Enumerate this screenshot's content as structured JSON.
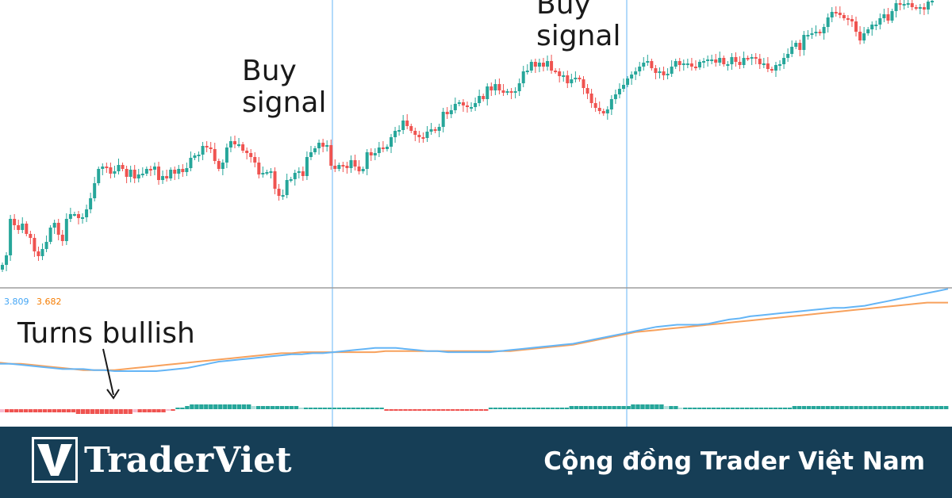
{
  "chart_data": {
    "type": "candlestick",
    "colors": {
      "up": "#26a69a",
      "down": "#ef5350",
      "fast_line": "#64b5f6",
      "slow_line": "#f7a15c",
      "hist_strong_up": "#26a69a",
      "hist_weak_up": "#b2dfdb",
      "hist_strong_down": "#ef5350",
      "hist_weak_down": "#f8bbd0",
      "signal_line": "#64b5f6"
    },
    "price_series": {
      "close": [
        334,
        322,
        276,
        284,
        290,
        282,
        295,
        300,
        317,
        323,
        314,
        305,
        287,
        281,
        296,
        304,
        276,
        270,
        270,
        275,
        274,
        264,
        250,
        231,
        213,
        210,
        211,
        219,
        216,
        208,
        213,
        223,
        214,
        225,
        220,
        219,
        213,
        214,
        210,
        227,
        222,
        225,
        214,
        219,
        213,
        217,
        212,
        199,
        196,
        195,
        184,
        186,
        188,
        203,
        213,
        205,
        186,
        178,
        182,
        182,
        190,
        193,
        198,
        205,
        220,
        218,
        217,
        216,
        238,
        247,
        246,
        227,
        226,
        218,
        216,
        222,
        198,
        192,
        187,
        180,
        185,
        183,
        209,
        213,
        208,
        209,
        212,
        202,
        210,
        216,
        213,
        192,
        196,
        193,
        186,
        188,
        185,
        173,
        165,
        164,
        152,
        159,
        165,
        170,
        173,
        174,
        166,
        163,
        165,
        160,
        141,
        144,
        139,
        131,
        129,
        133,
        135,
        135,
        130,
        121,
        125,
        109,
        114,
        106,
        114,
        117,
        115,
        117,
        115,
        105,
        90,
        89,
        78,
        84,
        79,
        84,
        77,
        89,
        90,
        96,
        95,
        105,
        100,
        98,
        100,
        111,
        118,
        130,
        136,
        140,
        143,
        138,
        125,
        119,
        112,
        107,
        99,
        94,
        90,
        84,
        79,
        77,
        86,
        92,
        90,
        95,
        93,
        84,
        77,
        82,
        80,
        80,
        84,
        85,
        78,
        77,
        75,
        75,
        79,
        73,
        81,
        81,
        72,
        78,
        82,
        73,
        74,
        72,
        74,
        81,
        80,
        87,
        89,
        82,
        81,
        73,
        68,
        59,
        54,
        63,
        44,
        44,
        42,
        40,
        42,
        34,
        22,
        15,
        16,
        19,
        23,
        24,
        27,
        40,
        51,
        42,
        37,
        31,
        31,
        23,
        18,
        26,
        14,
        4,
        6,
        5,
        4,
        9,
        10,
        9,
        12,
        2,
        1
      ]
    },
    "fast_line": [
      3.1,
      3.1,
      3.09,
      3.08,
      3.07,
      3.06,
      3.05,
      3.05,
      3.05,
      3.04,
      3.04,
      3.03,
      3.03,
      3.03,
      3.03,
      3.03,
      3.04,
      3.05,
      3.06,
      3.08,
      3.1,
      3.12,
      3.13,
      3.14,
      3.15,
      3.16,
      3.17,
      3.18,
      3.19,
      3.19,
      3.2,
      3.2,
      3.21,
      3.22,
      3.23,
      3.24,
      3.25,
      3.25,
      3.25,
      3.24,
      3.23,
      3.22,
      3.22,
      3.21,
      3.21,
      3.21,
      3.21,
      3.21,
      3.22,
      3.23,
      3.24,
      3.25,
      3.26,
      3.27,
      3.28,
      3.29,
      3.31,
      3.33,
      3.35,
      3.37,
      3.39,
      3.41,
      3.43,
      3.45,
      3.46,
      3.47,
      3.47,
      3.47,
      3.48,
      3.5,
      3.52,
      3.53,
      3.55,
      3.56,
      3.57,
      3.58,
      3.59,
      3.6,
      3.61,
      3.62,
      3.63,
      3.63,
      3.64,
      3.65,
      3.67,
      3.69,
      3.71,
      3.73,
      3.75,
      3.77,
      3.79,
      3.81
    ],
    "slow_line": [
      3.11,
      3.1,
      3.1,
      3.09,
      3.08,
      3.07,
      3.06,
      3.05,
      3.04,
      3.04,
      3.04,
      3.04,
      3.05,
      3.06,
      3.07,
      3.08,
      3.09,
      3.1,
      3.11,
      3.12,
      3.13,
      3.14,
      3.15,
      3.16,
      3.17,
      3.18,
      3.19,
      3.2,
      3.2,
      3.21,
      3.21,
      3.21,
      3.21,
      3.21,
      3.21,
      3.21,
      3.21,
      3.22,
      3.22,
      3.22,
      3.22,
      3.22,
      3.22,
      3.22,
      3.22,
      3.22,
      3.22,
      3.22,
      3.22,
      3.22,
      3.23,
      3.24,
      3.25,
      3.26,
      3.27,
      3.28,
      3.3,
      3.32,
      3.34,
      3.36,
      3.38,
      3.4,
      3.41,
      3.42,
      3.43,
      3.44,
      3.45,
      3.46,
      3.47,
      3.48,
      3.49,
      3.5,
      3.51,
      3.52,
      3.53,
      3.54,
      3.55,
      3.56,
      3.57,
      3.58,
      3.59,
      3.6,
      3.61,
      3.62,
      3.63,
      3.64,
      3.65,
      3.66,
      3.67,
      3.68,
      3.68,
      3.68
    ],
    "histogram": [
      -0.02,
      -0.02,
      -0.02,
      -0.02,
      -0.02,
      -0.02,
      -0.02,
      -0.02,
      -0.02,
      -0.02,
      -0.02,
      -0.02,
      -0.02,
      -0.02,
      -0.02,
      -0.02,
      -0.03,
      -0.03,
      -0.03,
      -0.03,
      -0.03,
      -0.03,
      -0.03,
      -0.03,
      -0.03,
      -0.03,
      -0.03,
      -0.03,
      -0.02,
      -0.02,
      -0.02,
      -0.02,
      -0.02,
      -0.02,
      -0.02,
      -0.01,
      -0.01,
      0.01,
      0.01,
      0.02,
      0.03,
      0.03,
      0.03,
      0.03,
      0.03,
      0.03,
      0.03,
      0.03,
      0.03,
      0.03,
      0.03,
      0.03,
      0.03,
      0.02,
      0.02,
      0.02,
      0.02,
      0.02,
      0.02,
      0.02,
      0.02,
      0.02,
      0.02,
      0.01,
      0.01,
      0.01,
      0.01,
      0.01,
      0.01,
      0.01,
      0.01,
      0.01,
      0.01,
      0.01,
      0.01,
      0.01,
      0.01,
      0.01,
      0.01,
      0.01,
      0.01,
      -0.01,
      -0.01,
      -0.01,
      -0.01,
      -0.01,
      -0.01,
      -0.01,
      -0.01,
      -0.01,
      -0.01,
      -0.01,
      -0.01,
      -0.01,
      -0.01,
      -0.01,
      -0.01,
      -0.01,
      -0.01,
      -0.01,
      -0.01,
      -0.01,
      -0.01,
      0.01,
      0.01,
      0.01,
      0.01,
      0.01,
      0.01,
      0.01,
      0.01,
      0.01,
      0.01,
      0.01,
      0.01,
      0.01,
      0.01,
      0.01,
      0.01,
      0.01,
      0.02,
      0.02,
      0.02,
      0.02,
      0.02,
      0.02,
      0.02,
      0.02,
      0.02,
      0.02,
      0.02,
      0.02,
      0.02,
      0.03,
      0.03,
      0.03,
      0.03,
      0.03,
      0.03,
      0.03,
      0.02,
      0.02,
      0.02,
      0.01,
      0.01,
      0.01,
      0.01,
      0.01,
      0.01,
      0.01,
      0.01,
      0.01,
      0.01,
      0.01,
      0.01,
      0.01,
      0.01,
      0.01,
      0.01,
      0.01,
      0.01,
      0.01,
      0.01,
      0.01,
      0.01,
      0.01,
      0.01,
      0.02,
      0.02,
      0.02,
      0.02,
      0.02,
      0.02,
      0.02,
      0.02,
      0.02,
      0.02,
      0.02,
      0.02,
      0.02,
      0.02,
      0.02,
      0.02,
      0.02,
      0.02,
      0.02,
      0.02,
      0.02,
      0.02,
      0.02,
      0.02,
      0.02,
      0.02,
      0.02,
      0.02,
      0.02,
      0.02,
      0.02,
      0.02,
      0.02
    ],
    "indicator_values": {
      "fast": "3.809",
      "slow": "3.682"
    },
    "annotations": [
      {
        "text": "Buy\nsignal",
        "line1": "Buy",
        "line2": "signal"
      },
      {
        "text": "Buy\nsignal",
        "line1": "Buy",
        "line2": "signal"
      },
      {
        "text": "Turns bullish"
      }
    ]
  },
  "footer": {
    "logo_letter": "V",
    "brand": "TraderViet",
    "tagline": "Cộng đồng Trader Việt Nam",
    "bg_color": "#163e56"
  }
}
